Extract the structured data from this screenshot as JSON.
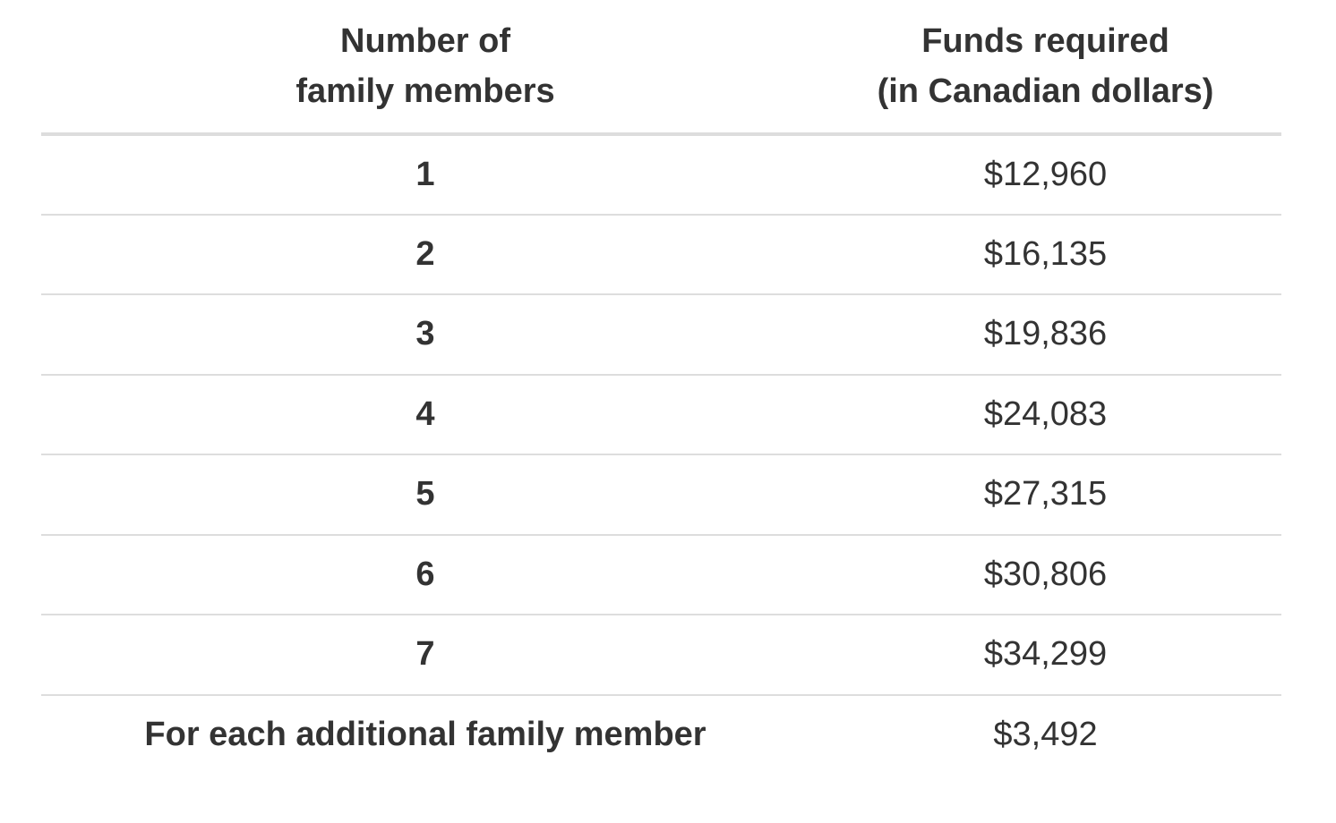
{
  "table": {
    "headers": {
      "members_line1": "Number of",
      "members_line2": "family members",
      "funds_line1": "Funds required",
      "funds_line2": "(in Canadian dollars)"
    },
    "rows": [
      {
        "members": "1",
        "funds": "$12,960"
      },
      {
        "members": "2",
        "funds": "$16,135"
      },
      {
        "members": "3",
        "funds": "$19,836"
      },
      {
        "members": "4",
        "funds": "$24,083"
      },
      {
        "members": "5",
        "funds": "$27,315"
      },
      {
        "members": "6",
        "funds": "$30,806"
      },
      {
        "members": "7",
        "funds": "$34,299"
      },
      {
        "members": "For each additional family member",
        "funds": "$3,492"
      }
    ]
  }
}
